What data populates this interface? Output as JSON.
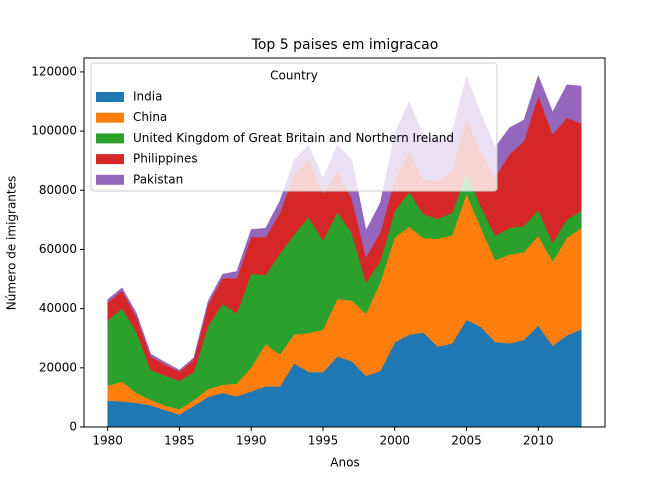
{
  "chart_data": {
    "type": "stacked_area",
    "title": "Top 5 paises em imigracao",
    "xlabel": "Anos",
    "ylabel": "Número de imigrantes",
    "x": [
      1980,
      1981,
      1982,
      1983,
      1984,
      1985,
      1986,
      1987,
      1988,
      1989,
      1990,
      1991,
      1992,
      1993,
      1994,
      1995,
      1996,
      1997,
      1998,
      1999,
      2000,
      2001,
      2002,
      2003,
      2004,
      2005,
      2006,
      2007,
      2008,
      2009,
      2010,
      2011,
      2012,
      2013
    ],
    "series": [
      {
        "name": "India",
        "color": "#1f77b4",
        "values": [
          8880,
          8670,
          8147,
          7338,
          5704,
          4211,
          7150,
          10189,
          11522,
          10343,
          12041,
          13734,
          13673,
          21496,
          18620,
          18489,
          23859,
          22268,
          17241,
          18974,
          28572,
          31223,
          31889,
          27155,
          28235,
          36210,
          33848,
          28742,
          28261,
          29456,
          34235,
          27509,
          30933,
          33087
        ]
      },
      {
        "name": "China",
        "color": "#ff7f0e",
        "values": [
          5123,
          6682,
          3308,
          1863,
          1527,
          1816,
          1960,
          2643,
          2758,
          4323,
          8076,
          14255,
          10846,
          9817,
          13128,
          14398,
          19415,
          20475,
          21049,
          30069,
          35529,
          36434,
          31961,
          36439,
          36619,
          42584,
          33518,
          27642,
          30037,
          29622,
          30391,
          28502,
          33024,
          34129
        ]
      },
      {
        "name": "United Kingdom of Great Britain and Northern Ireland",
        "color": "#2ca02c",
        "values": [
          22045,
          24796,
          20620,
          10015,
          10170,
          9564,
          9470,
          21337,
          27359,
          23795,
          31668,
          23380,
          34123,
          33720,
          39231,
          30145,
          29322,
          22965,
          10367,
          7045,
          8840,
          11728,
          8046,
          6797,
          7533,
          7258,
          7140,
          8216,
          8979,
          8876,
          8724,
          6204,
          6195,
          5827
        ]
      },
      {
        "name": "Philippines",
        "color": "#d62728",
        "values": [
          6051,
          5921,
          5249,
          4562,
          3801,
          3150,
          4166,
          7360,
          8639,
          11865,
          12509,
          12718,
          13670,
          20479,
          19532,
          15864,
          13692,
          11549,
          8735,
          9734,
          10763,
          13836,
          11707,
          12758,
          14004,
          18139,
          18400,
          19837,
          24887,
          28573,
          38617,
          36765,
          34315,
          29544
        ]
      },
      {
        "name": "Pakistan",
        "color": "#9467bd",
        "values": [
          978,
          972,
          1201,
          900,
          668,
          514,
          691,
          1072,
          1334,
          2261,
          2470,
          3079,
          4071,
          4777,
          4666,
          4994,
          9125,
          13073,
          9068,
          9979,
          15400,
          16708,
          15110,
          13205,
          13399,
          14314,
          13127,
          10124,
          8994,
          7217,
          6811,
          7468,
          11227,
          12603
        ]
      }
    ],
    "legend_title": "Country",
    "legend": "upper left",
    "xlim": [
      1978.35,
      2014.65
    ],
    "xticks": [
      1980,
      1985,
      1990,
      1995,
      2000,
      2005,
      2010
    ],
    "ylim": [
      0,
      124700
    ],
    "yticks": [
      0,
      20000,
      40000,
      60000,
      80000,
      100000,
      120000
    ]
  }
}
